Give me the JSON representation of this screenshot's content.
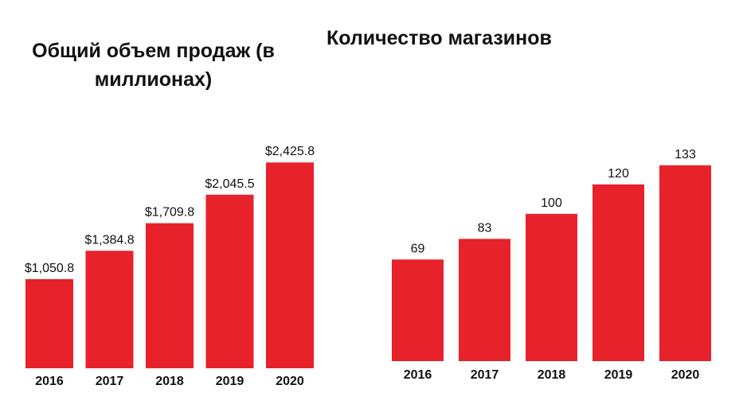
{
  "chart_data": [
    {
      "type": "bar",
      "title": "Общий объем продаж (в миллионах)",
      "categories": [
        "2016",
        "2017",
        "2018",
        "2019",
        "2020"
      ],
      "values": [
        1050.8,
        1384.8,
        1709.8,
        2045.5,
        2425.8
      ],
      "value_labels": [
        "$1,050.8",
        "$1,384.8",
        "$1,709.8",
        "$2,045.5",
        "$2,425.8"
      ],
      "color": "#e8222a",
      "ylim": [
        0,
        2700
      ]
    },
    {
      "type": "bar",
      "title": "Количество магазинов",
      "categories": [
        "2016",
        "2017",
        "2018",
        "2019",
        "2020"
      ],
      "values": [
        69,
        83,
        100,
        120,
        133
      ],
      "value_labels": [
        "69",
        "83",
        "100",
        "120",
        "133"
      ],
      "color": "#e8222a",
      "ylim": [
        0,
        148
      ]
    }
  ]
}
